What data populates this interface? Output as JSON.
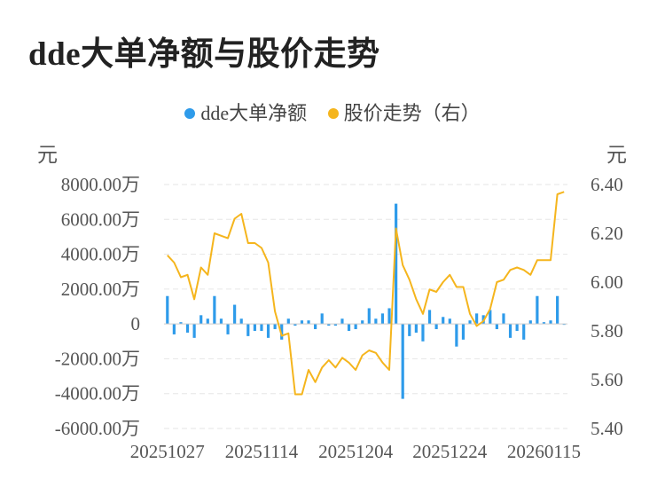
{
  "title": "dde大单净额与股价走势",
  "legend": [
    {
      "label": "dde大单净额",
      "color": "#2e9bea"
    },
    {
      "label": "股价走势（右）",
      "color": "#f5b51d"
    }
  ],
  "left_unit": "元",
  "right_unit": "元",
  "chart_data": {
    "type": "bar+line",
    "title": "dde大单净额与股价走势",
    "x_tick_labels": [
      "20251027",
      "20251114",
      "20251204",
      "20251224",
      "20260115"
    ],
    "y_left": {
      "ylim": [
        -6000,
        8000
      ],
      "ticks": [
        8000,
        6000,
        4000,
        2000,
        0,
        -2000,
        -4000,
        -6000
      ],
      "tick_labels": [
        "8000.00万",
        "6000.00万",
        "4000.00万",
        "2000.00万",
        "0",
        "-2000.00万",
        "-4000.00万",
        "-6000.00万"
      ]
    },
    "y_right": {
      "ylim": [
        5.4,
        6.4
      ],
      "ticks": [
        6.4,
        6.2,
        6.0,
        5.8,
        5.6,
        5.4
      ],
      "tick_labels": [
        "6.40",
        "6.20",
        "6.00",
        "5.80",
        "5.60",
        "5.40"
      ]
    },
    "series": [
      {
        "name": "dde大单净额",
        "type": "bar",
        "axis": "left",
        "color": "#2e9bea",
        "values": [
          1600,
          -600,
          100,
          -500,
          -800,
          500,
          300,
          1600,
          300,
          -600,
          1100,
          300,
          -700,
          -400,
          -400,
          -800,
          -300,
          -900,
          300,
          -100,
          200,
          200,
          -300,
          600,
          -100,
          -100,
          300,
          -400,
          -300,
          200,
          900,
          300,
          600,
          900,
          6900,
          -4300,
          -700,
          -500,
          -1000,
          800,
          -300,
          400,
          300,
          -1300,
          -900,
          200,
          600,
          500,
          800,
          -300,
          600,
          -800,
          -400,
          -900,
          200,
          1600,
          100,
          200,
          1600,
          0
        ]
      },
      {
        "name": "股价走势（右）",
        "type": "line",
        "axis": "right",
        "color": "#f5b51d",
        "values": [
          6.11,
          6.08,
          6.02,
          6.03,
          5.93,
          6.06,
          6.03,
          6.2,
          6.19,
          6.18,
          6.26,
          6.28,
          6.16,
          6.16,
          6.14,
          6.08,
          5.88,
          5.78,
          5.79,
          5.54,
          5.54,
          5.64,
          5.59,
          5.65,
          5.68,
          5.65,
          5.69,
          5.67,
          5.64,
          5.7,
          5.72,
          5.71,
          5.67,
          5.64,
          6.22,
          6.07,
          6.01,
          5.93,
          5.87,
          5.97,
          5.96,
          6.0,
          6.03,
          5.98,
          5.98,
          5.87,
          5.82,
          5.84,
          5.89,
          6.0,
          6.01,
          6.05,
          6.06,
          6.05,
          6.03,
          6.09,
          6.09,
          6.09,
          6.36,
          6.37
        ]
      }
    ]
  }
}
